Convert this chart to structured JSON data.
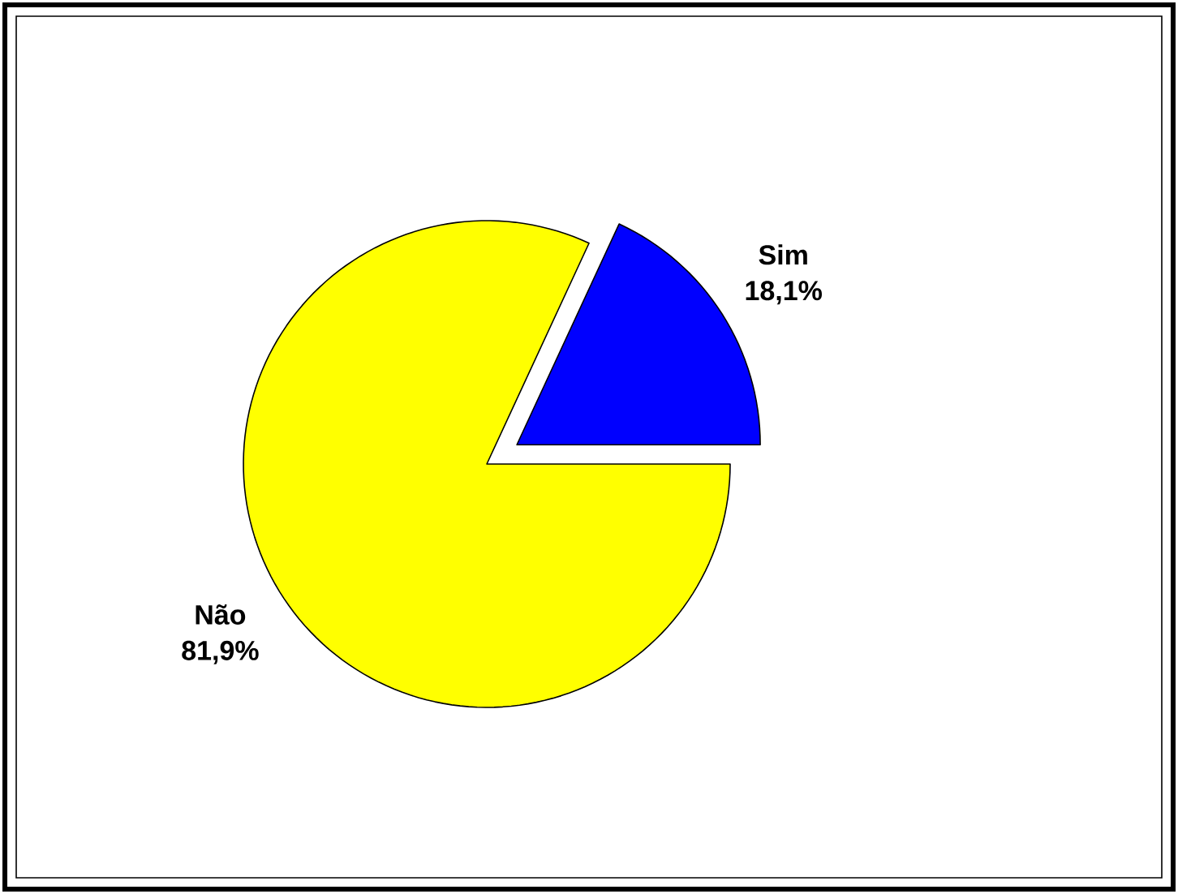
{
  "chart_data": {
    "type": "pie",
    "categories": [
      "Sim",
      "Não"
    ],
    "values": [
      18.1,
      81.9
    ],
    "colors": [
      "#0000ff",
      "#ffff00"
    ],
    "value_labels": [
      "18,1%",
      "81,9%"
    ]
  }
}
